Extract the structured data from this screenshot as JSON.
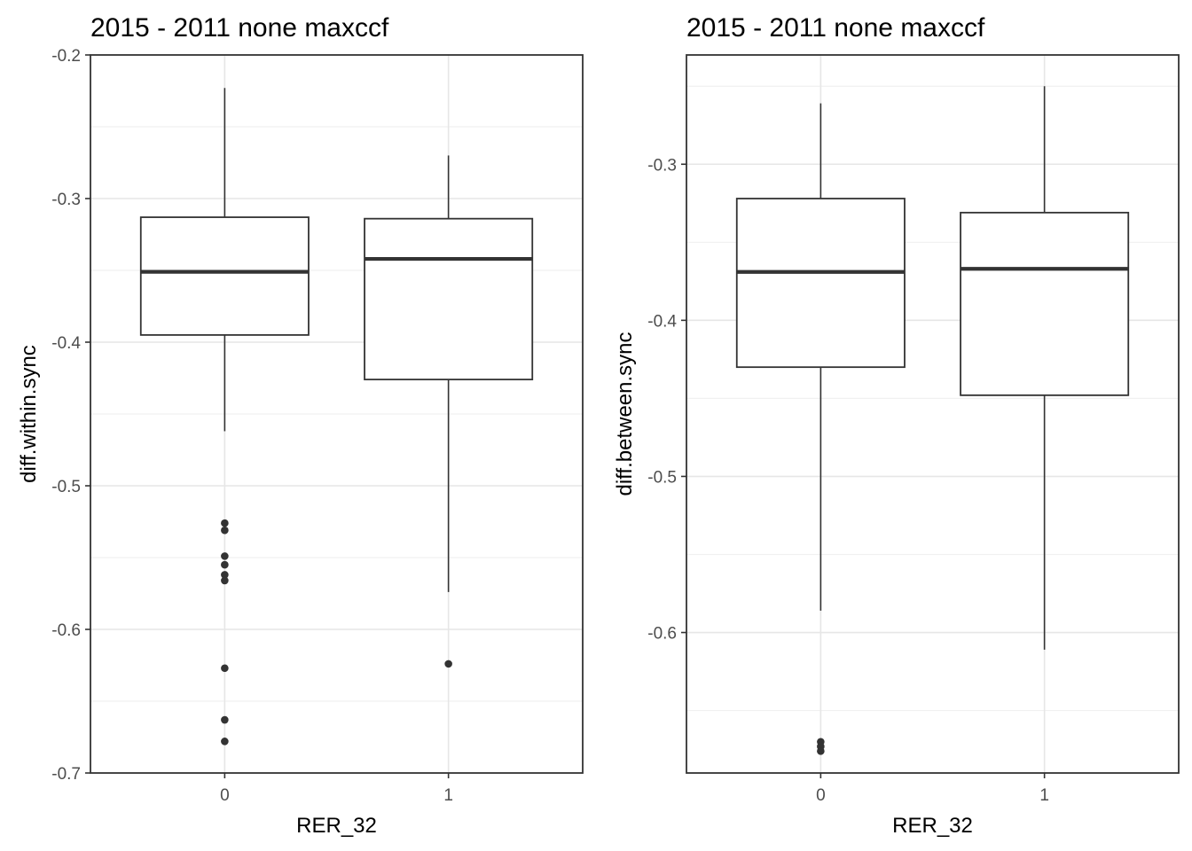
{
  "chart_data": [
    {
      "type": "box",
      "title": "2015 - 2011 none maxccf",
      "xlabel": "RER_32",
      "ylabel": "diff.within.sync",
      "categories": [
        "0",
        "1"
      ],
      "ylim": [
        -0.7,
        -0.2
      ],
      "yticks": [
        -0.7,
        -0.6,
        -0.5,
        -0.4,
        -0.3,
        -0.2
      ],
      "ytick_labels": [
        "-0.7",
        "-0.6",
        "-0.5",
        "-0.4",
        "-0.3",
        "-0.2"
      ],
      "grid": true,
      "boxes": [
        {
          "category": "0",
          "whisker_low": -0.462,
          "q1": -0.395,
          "median": -0.351,
          "q3": -0.313,
          "whisker_high": -0.223,
          "outliers": [
            -0.526,
            -0.531,
            -0.549,
            -0.555,
            -0.562,
            -0.566,
            -0.627,
            -0.663,
            -0.678
          ]
        },
        {
          "category": "1",
          "whisker_low": -0.574,
          "q1": -0.426,
          "median": -0.342,
          "q3": -0.314,
          "whisker_high": -0.27,
          "outliers": [
            -0.624
          ]
        }
      ]
    },
    {
      "type": "box",
      "title": "2015 - 2011 none maxccf",
      "xlabel": "RER_32",
      "ylabel": "diff.between.sync",
      "categories": [
        "0",
        "1"
      ],
      "ylim": [
        -0.69,
        -0.23
      ],
      "yticks": [
        -0.6,
        -0.5,
        -0.4,
        -0.3
      ],
      "ytick_labels": [
        "-0.6",
        "-0.5",
        "-0.4",
        "-0.3"
      ],
      "grid": true,
      "boxes": [
        {
          "category": "0",
          "whisker_low": -0.586,
          "q1": -0.43,
          "median": -0.369,
          "q3": -0.322,
          "whisker_high": -0.261,
          "outliers": [
            -0.67,
            -0.673,
            -0.676
          ]
        },
        {
          "category": "1",
          "whisker_low": -0.611,
          "q1": -0.448,
          "median": -0.367,
          "q3": -0.331,
          "whisker_high": -0.25,
          "outliers": []
        }
      ]
    }
  ]
}
